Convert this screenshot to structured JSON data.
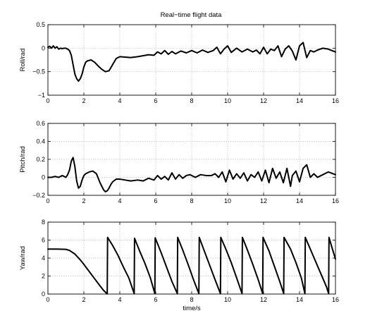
{
  "chart_data": [
    {
      "type": "line",
      "title": "Real−time flight data",
      "xlabel": "",
      "ylabel": "Roll/rad",
      "xlim": [
        0,
        16
      ],
      "ylim": [
        -1,
        0.5
      ],
      "xticks": [
        "0",
        "2",
        "4",
        "6",
        "8",
        "10",
        "12",
        "14",
        "16"
      ],
      "yticks": [
        "−1",
        "−0.5",
        "0",
        "0.5"
      ],
      "grid": true,
      "series": [
        {
          "color": "#000000",
          "x": [
            0,
            0.1,
            0.2,
            0.3,
            0.4,
            0.5,
            0.6,
            0.7,
            0.8,
            0.9,
            1.0,
            1.1,
            1.2,
            1.3,
            1.4,
            1.5,
            1.6,
            1.7,
            1.8,
            1.9,
            2.0,
            2.1,
            2.2,
            2.4,
            2.6,
            2.8,
            3.0,
            3.2,
            3.4,
            3.6,
            3.8,
            4.0,
            4.3,
            4.6,
            5.0,
            5.3,
            5.6,
            5.9,
            6.1,
            6.3,
            6.5,
            6.7,
            6.9,
            7.1,
            7.4,
            7.7,
            8.0,
            8.3,
            8.6,
            8.9,
            9.2,
            9.4,
            9.6,
            9.8,
            10.0,
            10.2,
            10.5,
            10.8,
            11.1,
            11.4,
            11.6,
            11.8,
            12.0,
            12.2,
            12.4,
            12.6,
            12.8,
            13.0,
            13.2,
            13.4,
            13.6,
            13.8,
            14.0,
            14.2,
            14.4,
            14.6,
            14.8,
            15.0,
            15.3,
            15.6,
            16.0
          ],
          "y": [
            0.02,
            0.04,
            0.0,
            0.05,
            0.0,
            0.03,
            -0.02,
            0.0,
            -0.01,
            0.0,
            0.0,
            -0.02,
            -0.05,
            -0.15,
            -0.35,
            -0.55,
            -0.65,
            -0.7,
            -0.65,
            -0.55,
            -0.4,
            -0.3,
            -0.27,
            -0.25,
            -0.3,
            -0.38,
            -0.45,
            -0.5,
            -0.48,
            -0.35,
            -0.22,
            -0.18,
            -0.19,
            -0.2,
            -0.18,
            -0.16,
            -0.14,
            -0.15,
            -0.08,
            -0.12,
            -0.05,
            -0.13,
            -0.07,
            -0.12,
            -0.06,
            -0.1,
            -0.05,
            -0.1,
            -0.04,
            -0.09,
            -0.05,
            0.02,
            -0.12,
            -0.02,
            0.05,
            -0.09,
            0.0,
            -0.08,
            -0.02,
            -0.08,
            -0.04,
            -0.12,
            0.02,
            -0.12,
            -0.02,
            -0.05,
            0.05,
            -0.18,
            -0.02,
            0.05,
            -0.06,
            -0.25,
            0.05,
            0.12,
            -0.2,
            -0.05,
            -0.08,
            -0.04,
            0.0,
            -0.02,
            -0.08
          ]
        }
      ]
    },
    {
      "type": "line",
      "title": "",
      "xlabel": "",
      "ylabel": "Pitch/rad",
      "xlim": [
        0,
        16
      ],
      "ylim": [
        -0.2,
        0.6
      ],
      "xticks": [
        "0",
        "2",
        "4",
        "6",
        "8",
        "10",
        "12",
        "14",
        "16"
      ],
      "yticks": [
        "−0.2",
        "0",
        "0.2",
        "0.4",
        "0.6"
      ],
      "grid": true,
      "series": [
        {
          "color": "#000000",
          "x": [
            0,
            0.2,
            0.4,
            0.6,
            0.8,
            1.0,
            1.1,
            1.2,
            1.3,
            1.4,
            1.5,
            1.6,
            1.7,
            1.8,
            1.9,
            2.0,
            2.1,
            2.3,
            2.5,
            2.7,
            2.9,
            3.0,
            3.1,
            3.2,
            3.3,
            3.4,
            3.5,
            3.6,
            3.8,
            4.0,
            4.3,
            4.6,
            5.0,
            5.3,
            5.6,
            5.9,
            6.1,
            6.3,
            6.5,
            6.7,
            6.9,
            7.1,
            7.3,
            7.5,
            7.7,
            7.9,
            8.2,
            8.5,
            8.8,
            9.1,
            9.3,
            9.5,
            9.7,
            9.9,
            10.1,
            10.3,
            10.5,
            10.7,
            10.9,
            11.1,
            11.3,
            11.5,
            11.7,
            11.9,
            12.1,
            12.3,
            12.5,
            12.7,
            12.9,
            13.1,
            13.3,
            13.5,
            13.6,
            13.8,
            14.0,
            14.2,
            14.4,
            14.6,
            14.8,
            15.0,
            15.3,
            15.6,
            16.0
          ],
          "y": [
            0.0,
            0.0,
            0.01,
            0.0,
            0.02,
            0.0,
            0.03,
            0.08,
            0.18,
            0.22,
            0.12,
            -0.04,
            -0.12,
            -0.1,
            -0.03,
            0.02,
            0.04,
            0.06,
            0.07,
            0.04,
            -0.06,
            -0.1,
            -0.14,
            -0.16,
            -0.15,
            -0.12,
            -0.08,
            -0.05,
            -0.02,
            -0.02,
            -0.03,
            -0.04,
            -0.03,
            -0.04,
            -0.01,
            -0.03,
            0.02,
            -0.02,
            0.01,
            -0.03,
            0.05,
            -0.02,
            0.03,
            -0.01,
            0.02,
            0.03,
            0.0,
            0.03,
            0.02,
            0.02,
            0.04,
            0.0,
            0.06,
            -0.05,
            0.08,
            -0.02,
            0.04,
            -0.01,
            0.05,
            -0.04,
            0.03,
            0.0,
            0.06,
            -0.04,
            0.08,
            -0.06,
            0.1,
            -0.01,
            0.06,
            -0.06,
            0.1,
            -0.1,
            0.02,
            0.07,
            -0.05,
            0.1,
            0.14,
            0.0,
            0.04,
            0.0,
            0.03,
            0.06,
            0.03
          ]
        }
      ]
    },
    {
      "type": "line",
      "title": "",
      "xlabel": "time/s",
      "ylabel": "Yaw/rad",
      "xlim": [
        0,
        16
      ],
      "ylim": [
        0,
        8
      ],
      "xticks": [
        "0",
        "2",
        "4",
        "6",
        "8",
        "10",
        "12",
        "14",
        "16"
      ],
      "yticks": [
        "0",
        "2",
        "4",
        "6",
        "8"
      ],
      "grid": true,
      "series": [
        {
          "color": "#000000",
          "x": [
            0,
            0.5,
            1.0,
            1.2,
            1.5,
            1.8,
            2.0,
            2.3,
            2.6,
            2.9,
            3.1,
            3.3,
            3.32,
            3.6,
            3.9,
            4.2,
            4.5,
            4.8,
            4.82,
            5.1,
            5.4,
            5.7,
            5.95,
            5.97,
            6.3,
            6.6,
            6.9,
            7.2,
            7.22,
            7.5,
            7.8,
            8.1,
            8.4,
            8.42,
            8.7,
            9.0,
            9.3,
            9.6,
            9.62,
            9.9,
            10.2,
            10.5,
            10.8,
            10.82,
            11.1,
            11.4,
            11.7,
            11.95,
            11.97,
            12.3,
            12.6,
            12.9,
            13.12,
            13.14,
            13.5,
            13.8,
            14.1,
            14.3,
            14.32,
            14.6,
            14.9,
            15.2,
            15.5,
            15.62,
            15.64,
            15.8,
            16.0
          ],
          "y": [
            5.0,
            5.0,
            4.97,
            4.85,
            4.45,
            3.8,
            3.3,
            2.5,
            1.7,
            0.9,
            0.4,
            0.02,
            6.3,
            5.4,
            4.3,
            3.0,
            1.8,
            0.05,
            6.2,
            4.8,
            3.4,
            1.8,
            0.05,
            6.25,
            4.6,
            3.0,
            1.4,
            0.05,
            6.3,
            4.9,
            3.3,
            1.6,
            0.05,
            6.3,
            4.8,
            3.2,
            1.6,
            0.05,
            6.3,
            5.0,
            3.5,
            1.8,
            0.05,
            6.3,
            4.9,
            3.3,
            1.6,
            0.05,
            6.3,
            4.8,
            3.1,
            1.4,
            0.05,
            6.3,
            5.0,
            3.5,
            1.8,
            0.05,
            6.3,
            5.0,
            3.6,
            2.2,
            0.8,
            0.05,
            6.3,
            5.2,
            3.9
          ]
        }
      ]
    }
  ]
}
